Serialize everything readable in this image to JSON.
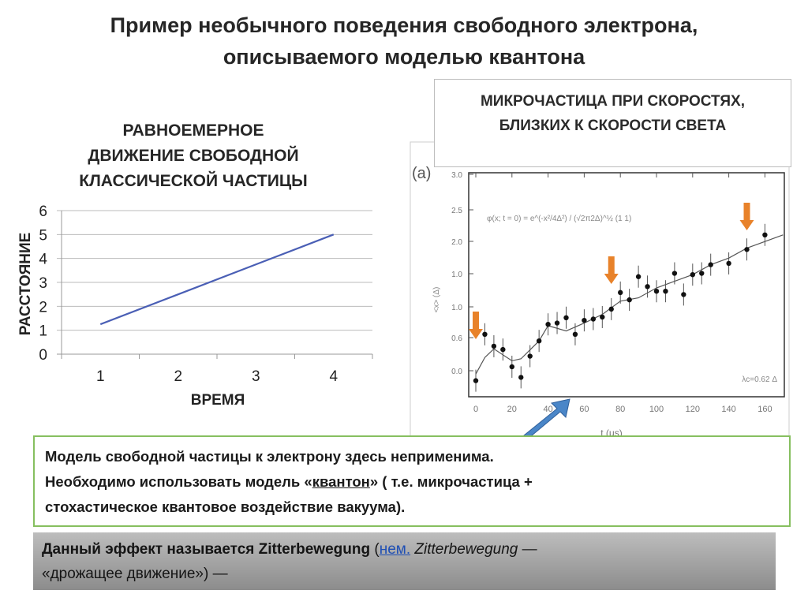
{
  "slide": {
    "title_line1": "Пример необычного поведения свободного электрона,",
    "title_line2": "описываемого моделью квантона",
    "right_box_line1": "МИКРОЧАСТИЦА ПРИ СКОРОСТЯХ,",
    "right_box_line2": "БЛИЗКИХ К СКОРОСТИ СВЕТА",
    "chart_title_line1": "РАВНОЕМЕРНОЕ",
    "chart_title_line2": "ДВИЖЕНИЕ СВОБОДНОЙ",
    "chart_title_line3": "КЛАССИЧЕСКОЙ ЧАСТИЦЫ",
    "green_line1": "Модель свободной частицы к электрону здесь неприменима.",
    "green_line2_pre": "Необходимо использовать модель «",
    "green_line2_link": "квантон",
    "green_line2_post": "» ( т.е. микрочастица +",
    "green_line3": "стохастическое квантовое  воздействие вакуума).",
    "gray_bold": "Данный эффект называется Zitterbewegung",
    "gray_open": " (",
    "gray_link": "нем.",
    "gray_italic": " Zitterbewegung",
    "gray_dash": " —",
    "gray_line2": "«дрожащее движение») —"
  },
  "figure": {
    "panel_label": "(a)",
    "formula": "φ(x; t = 0) = e^(-x²/4Δ²) / (√2π2Δ)^½ (1 1)",
    "ylabel": "<x> (Δ)",
    "xlabel": "t (μs)",
    "annotation": "λc=0.62 Δ",
    "yticks": [
      "3.0",
      "2.5",
      "2.0",
      "1.0",
      "1.0",
      "0.6",
      "0.0"
    ],
    "xticks": [
      "0",
      "20",
      "40",
      "60",
      "80",
      "100",
      "120",
      "140",
      "160"
    ],
    "arrow_color": "#e8822a",
    "pointer_color": "#4a86c8"
  },
  "chart_data": {
    "type": "line",
    "title": "РАВНОЕМЕРНОЕ ДВИЖЕНИЕ СВОБОДНОЙ КЛАССИЧЕСКОЙ ЧАСТИЦЫ",
    "xlabel": "ВРЕМЯ",
    "ylabel": "РАССТОЯНИЕ",
    "categories": [
      "1",
      "2",
      "3",
      "4"
    ],
    "values": [
      1.25,
      2.5,
      3.75,
      5
    ],
    "yticks": [
      "0",
      "1",
      "2",
      "3",
      "4",
      "5",
      "6"
    ],
    "ylim": [
      0,
      6
    ],
    "grid": true,
    "line_color": "#4a5fb5"
  }
}
